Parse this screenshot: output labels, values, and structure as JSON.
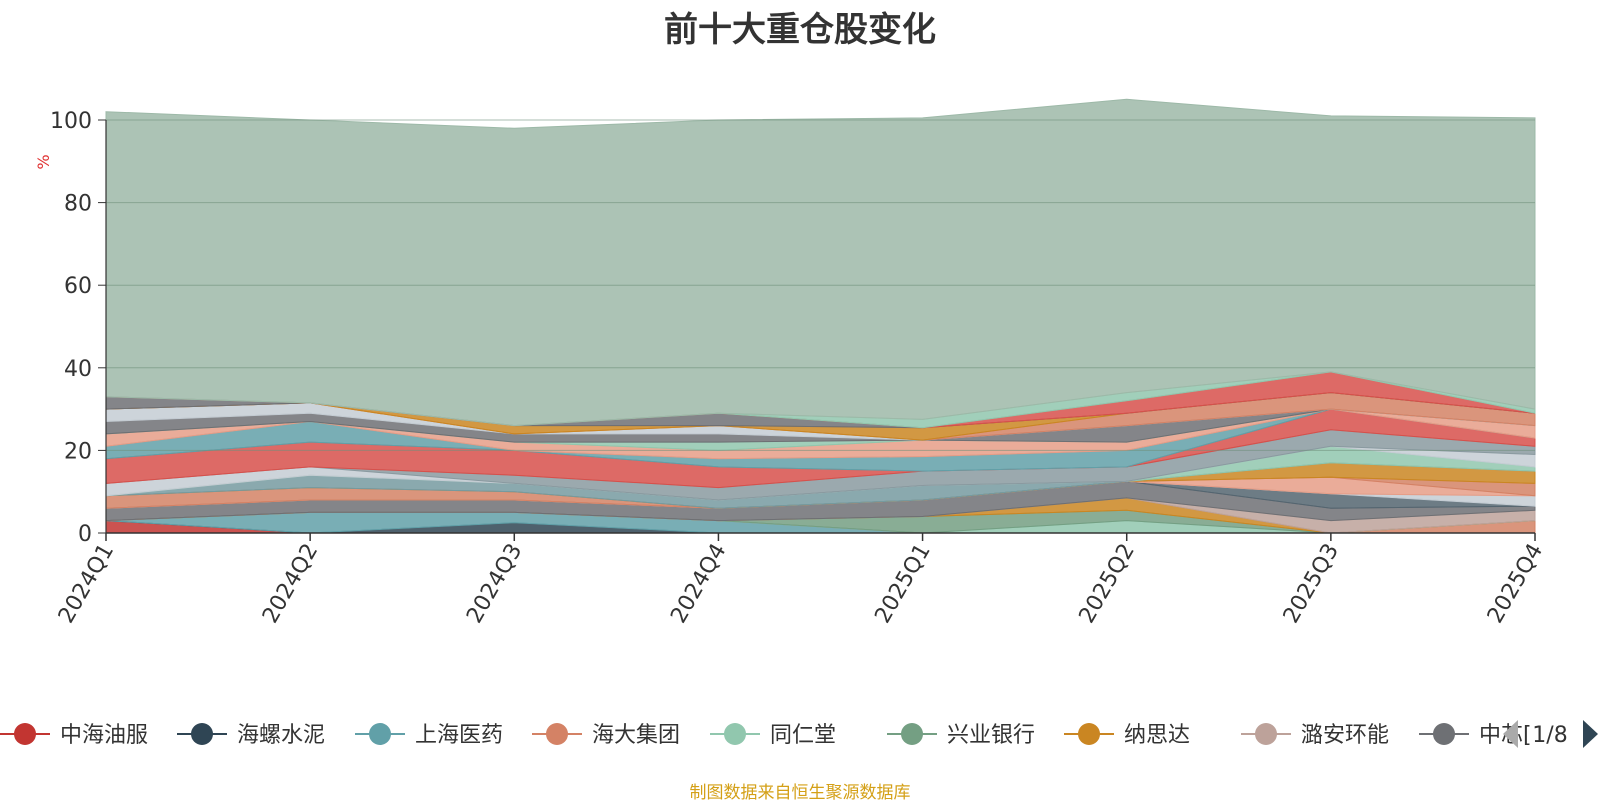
{
  "chart_data": {
    "type": "area",
    "stacked": true,
    "title": "前十大重仓股变化",
    "ylabel": "%",
    "ylim": [
      0,
      100
    ],
    "yticks": [
      0,
      20,
      40,
      60,
      80,
      100
    ],
    "categories": [
      "2024Q1",
      "2024Q2",
      "2024Q3",
      "2024Q4",
      "2025Q1",
      "2025Q2",
      "2025Q3",
      "2025Q4"
    ],
    "grid": true,
    "series": [
      {
        "name": "中海油服",
        "color": "#c23531",
        "values": [
          3.0,
          0.0,
          0.0,
          0.0,
          0.0,
          0.0,
          0.0,
          0.0
        ]
      },
      {
        "name": "海螺水泥",
        "color": "#2f4554",
        "values": [
          0.0,
          0.0,
          2.5,
          0.0,
          0.0,
          0.0,
          0.0,
          0.0
        ]
      },
      {
        "name": "上海医药",
        "color": "#61a0a8",
        "values": [
          0.0,
          5.0,
          2.5,
          3.0,
          0.0,
          0.0,
          0.0,
          0.0
        ]
      },
      {
        "name": "海大集团",
        "color": "#d48265",
        "values": [
          0.0,
          0.0,
          0.0,
          0.0,
          0.0,
          0.0,
          0.0,
          3.0
        ]
      },
      {
        "name": "同仁堂",
        "color": "#91c7ae",
        "values": [
          0.0,
          0.0,
          0.0,
          0.0,
          0.0,
          3.0,
          0.0,
          0.0
        ]
      },
      {
        "name": "兴业银行",
        "color": "#749f83",
        "values": [
          0.0,
          0.0,
          0.0,
          0.0,
          4.0,
          2.5,
          0.0,
          0.0
        ]
      },
      {
        "name": "纳思达",
        "color": "#ca8622",
        "values": [
          0.0,
          0.0,
          0.0,
          0.0,
          0.0,
          3.0,
          0.0,
          0.0
        ]
      },
      {
        "name": "潞安环能",
        "color": "#bda29a",
        "values": [
          0.0,
          0.0,
          0.0,
          0.0,
          0.0,
          0.0,
          3.0,
          2.5
        ]
      },
      {
        "name": "中芯国际",
        "color": "#6e7074",
        "values": [
          3.0,
          3.0,
          3.0,
          3.0,
          4.0,
          4.0,
          3.0,
          1.0
        ]
      },
      {
        "name": "",
        "color": "#546570",
        "values": [
          0.0,
          0.0,
          0.0,
          0.0,
          0.0,
          0.0,
          3.5,
          0.0
        ]
      },
      {
        "name": "",
        "color": "#c4ccd3",
        "values": [
          0.0,
          0.0,
          0.0,
          0.0,
          0.0,
          0.0,
          0.0,
          2.5
        ]
      },
      {
        "name": "",
        "color": "#e69d87",
        "values": [
          0.0,
          0.0,
          0.0,
          0.0,
          0.0,
          0.0,
          4.0,
          0.0
        ]
      },
      {
        "name": "",
        "color": "#d48265",
        "values": [
          3.0,
          3.0,
          2.0,
          0.0,
          0.0,
          0.0,
          0.0,
          3.0
        ]
      },
      {
        "name": "",
        "color": "#ca8622",
        "values": [
          0.0,
          0.0,
          0.0,
          0.0,
          0.0,
          0.0,
          3.5,
          3.0
        ]
      },
      {
        "name": "",
        "color": "#759aa0",
        "values": [
          0.0,
          3.0,
          2.0,
          2.0,
          3.5,
          0.0,
          0.0,
          0.0
        ]
      },
      {
        "name": "",
        "color": "#91c7ae",
        "values": [
          0.0,
          0.0,
          0.0,
          0.0,
          0.0,
          0.0,
          4.0,
          1.0
        ]
      },
      {
        "name": "",
        "color": "#c4ccd3",
        "values": [
          3.0,
          2.0,
          0.0,
          0.0,
          0.0,
          0.0,
          0.0,
          3.0
        ]
      },
      {
        "name": "",
        "color": "#8a9aa0",
        "values": [
          0.0,
          0.0,
          2.0,
          3.0,
          3.5,
          3.5,
          4.0,
          2.0
        ]
      },
      {
        "name": "",
        "color": "#d7504b",
        "values": [
          6.0,
          6.0,
          6.0,
          5.0,
          0.0,
          0.0,
          5.0,
          2.0
        ]
      },
      {
        "name": "",
        "color": "#61a0a8",
        "values": [
          3.0,
          5.0,
          0.0,
          2.0,
          3.5,
          4.0,
          0.0,
          0.0
        ]
      },
      {
        "name": "",
        "color": "#e69d87",
        "values": [
          3.0,
          0.0,
          2.0,
          2.0,
          4.0,
          2.0,
          0.0,
          3.0
        ]
      },
      {
        "name": "",
        "color": "#91c7ae",
        "values": [
          0.0,
          0.0,
          0.0,
          2.0,
          0.0,
          0.0,
          0.0,
          0.0
        ]
      },
      {
        "name": "",
        "color": "#6e7074",
        "values": [
          3.0,
          2.0,
          2.0,
          2.0,
          0.0,
          4.0,
          0.0,
          0.0
        ]
      },
      {
        "name": "",
        "color": "#c4ccd3",
        "values": [
          3.0,
          2.5,
          0.0,
          2.0,
          0.0,
          0.0,
          0.0,
          0.0
        ]
      },
      {
        "name": "",
        "color": "#d48265",
        "values": [
          0.0,
          0.0,
          0.0,
          0.0,
          0.0,
          3.0,
          4.0,
          3.0
        ]
      },
      {
        "name": "",
        "color": "#ca8622",
        "values": [
          0.0,
          0.0,
          2.0,
          0.0,
          3.0,
          0.0,
          0.0,
          0.0
        ]
      },
      {
        "name": "",
        "color": "#6e7074",
        "values": [
          3.0,
          0.0,
          0.0,
          3.0,
          0.0,
          0.0,
          0.0,
          0.0
        ]
      },
      {
        "name": "",
        "color": "#d7504b",
        "values": [
          0.0,
          0.0,
          0.0,
          0.0,
          0.0,
          3.0,
          5.0,
          0.0
        ]
      },
      {
        "name": "",
        "color": "#91c7ae",
        "values": [
          0.0,
          0.0,
          0.0,
          0.0,
          2.0,
          2.0,
          0.0,
          1.0
        ]
      },
      {
        "name": "",
        "color": "#9db9a8",
        "values": [
          69.0,
          68.5,
          72.0,
          71.0,
          73.0,
          71.0,
          62.0,
          70.5
        ]
      }
    ]
  },
  "legend": {
    "page_indicator": "1/8",
    "items": [
      {
        "label": "中海油服",
        "color": "#c23531"
      },
      {
        "label": "海螺水泥",
        "color": "#2f4554"
      },
      {
        "label": "上海医药",
        "color": "#61a0a8"
      },
      {
        "label": "海大集团",
        "color": "#d48265"
      },
      {
        "label": "同仁堂",
        "color": "#91c7ae"
      },
      {
        "label": "兴业银行",
        "color": "#749f83"
      },
      {
        "label": "纳思达",
        "color": "#ca8622"
      },
      {
        "label": "潞安环能",
        "color": "#bda29a"
      },
      {
        "label": "中芯[",
        "color": "#6e7074"
      }
    ]
  },
  "footer": {
    "note": "制图数据来自恒生聚源数据库"
  }
}
